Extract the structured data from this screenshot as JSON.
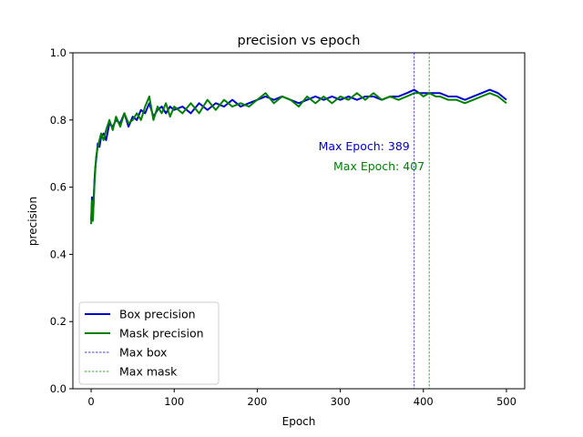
{
  "chart_data": {
    "type": "line",
    "title": "precision vs epoch",
    "xlabel": "Epoch",
    "ylabel": "precision",
    "xlim": [
      -22,
      522
    ],
    "ylim": [
      0.0,
      1.0
    ],
    "xticks": [
      0,
      100,
      200,
      300,
      400,
      500
    ],
    "yticks": [
      "0.0",
      "0.2",
      "0.4",
      "0.6",
      "0.8",
      "1.0"
    ],
    "grid": false,
    "legend_position": "lower-left",
    "series": [
      {
        "name": "Box precision",
        "color": "#0000cc",
        "style": "solid",
        "x": [
          0,
          1,
          2,
          3,
          4,
          5,
          6,
          8,
          10,
          12,
          15,
          18,
          22,
          26,
          30,
          35,
          40,
          45,
          50,
          55,
          60,
          65,
          70,
          75,
          80,
          85,
          90,
          95,
          100,
          110,
          120,
          130,
          140,
          150,
          160,
          170,
          180,
          190,
          200,
          210,
          220,
          230,
          240,
          250,
          260,
          270,
          280,
          290,
          300,
          310,
          320,
          330,
          340,
          350,
          360,
          370,
          380,
          389,
          395,
          400,
          407,
          415,
          420,
          430,
          440,
          450,
          460,
          470,
          480,
          490,
          500
        ],
        "y": [
          0.5,
          0.57,
          0.5,
          0.56,
          0.62,
          0.66,
          0.68,
          0.73,
          0.72,
          0.75,
          0.76,
          0.74,
          0.79,
          0.78,
          0.8,
          0.79,
          0.82,
          0.78,
          0.81,
          0.8,
          0.83,
          0.82,
          0.85,
          0.81,
          0.83,
          0.84,
          0.82,
          0.84,
          0.83,
          0.84,
          0.82,
          0.85,
          0.83,
          0.85,
          0.84,
          0.86,
          0.84,
          0.85,
          0.86,
          0.87,
          0.86,
          0.87,
          0.86,
          0.85,
          0.86,
          0.87,
          0.86,
          0.87,
          0.86,
          0.87,
          0.86,
          0.87,
          0.87,
          0.86,
          0.87,
          0.87,
          0.88,
          0.89,
          0.88,
          0.88,
          0.88,
          0.88,
          0.88,
          0.87,
          0.87,
          0.86,
          0.87,
          0.88,
          0.89,
          0.88,
          0.86
        ]
      },
      {
        "name": "Mask precision",
        "color": "#008000",
        "style": "solid",
        "x": [
          0,
          1,
          2,
          3,
          4,
          5,
          6,
          8,
          10,
          12,
          15,
          18,
          22,
          26,
          30,
          35,
          40,
          45,
          50,
          55,
          60,
          65,
          70,
          75,
          80,
          85,
          90,
          95,
          100,
          110,
          120,
          130,
          140,
          150,
          160,
          170,
          180,
          190,
          200,
          210,
          220,
          230,
          240,
          250,
          260,
          270,
          280,
          290,
          300,
          310,
          320,
          330,
          340,
          350,
          360,
          370,
          380,
          389,
          395,
          400,
          407,
          415,
          420,
          430,
          440,
          450,
          460,
          470,
          480,
          490,
          500
        ],
        "y": [
          0.49,
          0.56,
          0.5,
          0.55,
          0.61,
          0.65,
          0.69,
          0.72,
          0.74,
          0.76,
          0.74,
          0.77,
          0.8,
          0.77,
          0.81,
          0.78,
          0.82,
          0.79,
          0.8,
          0.82,
          0.8,
          0.84,
          0.87,
          0.8,
          0.84,
          0.82,
          0.85,
          0.81,
          0.84,
          0.82,
          0.85,
          0.82,
          0.86,
          0.83,
          0.86,
          0.84,
          0.85,
          0.84,
          0.86,
          0.88,
          0.85,
          0.87,
          0.86,
          0.84,
          0.87,
          0.85,
          0.87,
          0.85,
          0.87,
          0.86,
          0.88,
          0.86,
          0.88,
          0.86,
          0.87,
          0.86,
          0.87,
          0.88,
          0.88,
          0.87,
          0.88,
          0.87,
          0.87,
          0.86,
          0.86,
          0.85,
          0.86,
          0.87,
          0.88,
          0.87,
          0.85
        ]
      },
      {
        "name": "Max box",
        "color": "#0000cc",
        "style": "dashed",
        "vline": 389
      },
      {
        "name": "Max mask",
        "color": "#008000",
        "style": "dashed",
        "vline": 407
      }
    ],
    "annotations": [
      {
        "text": "Max Epoch: 389",
        "x": 389,
        "y": 0.71,
        "color": "#0000cc"
      },
      {
        "text": "Max Epoch: 407",
        "x": 407,
        "y": 0.65,
        "color": "#008000"
      }
    ]
  }
}
